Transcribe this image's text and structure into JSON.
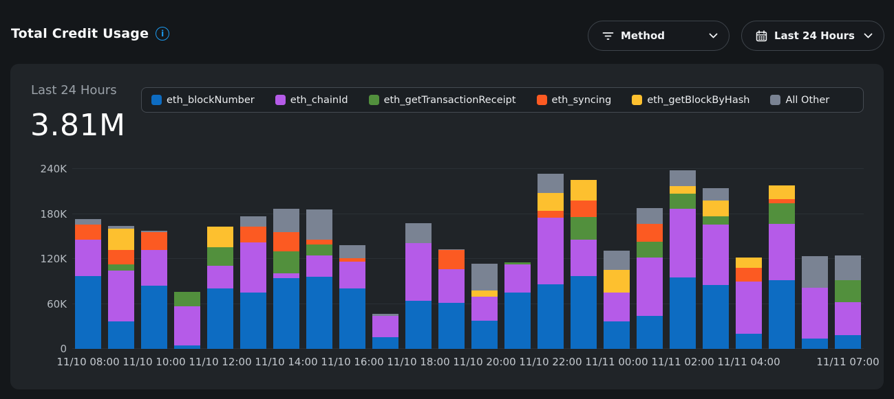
{
  "header": {
    "title": "Total Credit Usage",
    "filters": {
      "method": {
        "label": "Method",
        "icon": "filter-icon"
      },
      "time_range": {
        "label": "Last 24 Hours",
        "icon": "calendar-icon"
      }
    }
  },
  "summary": {
    "period_label": "Last 24 Hours",
    "total_value": "3.81M"
  },
  "chart_data": {
    "type": "bar",
    "stacked": true,
    "title": "Total Credit Usage",
    "xlabel": "",
    "ylabel": "",
    "ylim": [
      0,
      240000
    ],
    "grid": true,
    "legend_position": "top",
    "bar_count": 24,
    "yticks": [
      {
        "value": 0,
        "label": "0"
      },
      {
        "value": 60000,
        "label": "60K"
      },
      {
        "value": 120000,
        "label": "120K"
      },
      {
        "value": 180000,
        "label": "180K"
      },
      {
        "value": 240000,
        "label": "240K"
      }
    ],
    "xticks": [
      {
        "bar_index": 0,
        "label": "11/10 08:00"
      },
      {
        "bar_index": 2,
        "label": "11/10 10:00"
      },
      {
        "bar_index": 4,
        "label": "11/10 12:00"
      },
      {
        "bar_index": 6,
        "label": "11/10 14:00"
      },
      {
        "bar_index": 8,
        "label": "11/10 16:00"
      },
      {
        "bar_index": 10,
        "label": "11/10 18:00"
      },
      {
        "bar_index": 12,
        "label": "11/10 20:00"
      },
      {
        "bar_index": 14,
        "label": "11/10 22:00"
      },
      {
        "bar_index": 16,
        "label": "11/11 00:00"
      },
      {
        "bar_index": 18,
        "label": "11/11 02:00"
      },
      {
        "bar_index": 20,
        "label": "11/11 04:00"
      },
      {
        "bar_index": 23,
        "label": "11/11 07:00"
      }
    ],
    "series": [
      {
        "name": "eth_blockNumber",
        "color": "#0D6CC2",
        "values": [
          97000,
          37000,
          84000,
          5000,
          81000,
          75000,
          94000,
          96000,
          81000,
          16000,
          64000,
          61000,
          38000,
          75000,
          86000,
          97000,
          37000,
          44000,
          95000,
          85000,
          20000,
          92000,
          14000,
          18000
        ]
      },
      {
        "name": "eth_chainId",
        "color": "#B55BE8",
        "values": [
          49000,
          67000,
          48000,
          52000,
          30000,
          67000,
          7000,
          29000,
          35000,
          28000,
          77000,
          45000,
          32000,
          38000,
          89000,
          49000,
          38000,
          78000,
          92000,
          81000,
          70000,
          75000,
          68000,
          44000
        ]
      },
      {
        "name": "eth_getTransactionReceipt",
        "color": "#52903D",
        "values": [
          0,
          9000,
          0,
          19000,
          25000,
          0,
          29000,
          14000,
          0,
          0,
          0,
          0,
          0,
          2000,
          0,
          30000,
          0,
          21000,
          20000,
          11000,
          0,
          27000,
          0,
          30000
        ]
      },
      {
        "name": "eth_syncing",
        "color": "#FC5A22",
        "values": [
          20000,
          19000,
          24000,
          0,
          0,
          21000,
          26000,
          7000,
          5000,
          0,
          0,
          26000,
          0,
          0,
          9000,
          22000,
          0,
          24000,
          0,
          0,
          18000,
          6000,
          0,
          0
        ]
      },
      {
        "name": "eth_getBlockByHash",
        "color": "#FDC02F",
        "values": [
          0,
          28000,
          0,
          0,
          27000,
          0,
          0,
          0,
          0,
          0,
          0,
          0,
          8000,
          0,
          24000,
          27000,
          30000,
          0,
          10000,
          21000,
          14000,
          18000,
          0,
          0
        ]
      },
      {
        "name": "All Other",
        "color": "#7A8393",
        "values": [
          7000,
          4000,
          2000,
          0,
          0,
          14000,
          31000,
          40000,
          17000,
          3000,
          27000,
          1000,
          36000,
          0,
          26000,
          0,
          26000,
          21000,
          21000,
          16000,
          0,
          0,
          42000,
          33000
        ]
      }
    ]
  }
}
